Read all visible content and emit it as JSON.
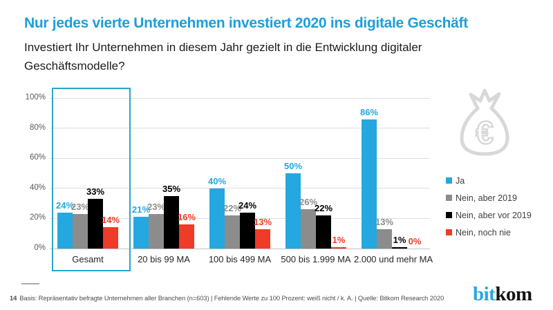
{
  "header": {
    "title": "Nur jedes vierte Unternehmen investiert 2020 ins digitale Geschäft",
    "subtitle": "Investiert Ihr Unternehmen in diesem Jahr gezielt in die Entwicklung digitaler Geschäftsmodelle?"
  },
  "chart_data": {
    "type": "bar",
    "categories": [
      "Gesamt",
      "20 bis 99 MA",
      "100 bis 499 MA",
      "500 bis 1.999 MA",
      "2.000 und mehr MA"
    ],
    "series": [
      {
        "name": "Ja",
        "color": "#25a7df",
        "values": [
          24,
          21,
          40,
          50,
          86
        ]
      },
      {
        "name": "Nein, aber 2019",
        "color": "#8c8c8c",
        "values": [
          23,
          23,
          22,
          26,
          13
        ]
      },
      {
        "name": "Nein, aber vor 2019",
        "color": "#000000",
        "values": [
          33,
          35,
          24,
          22,
          1
        ]
      },
      {
        "name": "Nein, noch nie",
        "color": "#ef3b28",
        "values": [
          14,
          16,
          13,
          1,
          0
        ]
      }
    ],
    "y_ticks": [
      "0%",
      "20%",
      "40%",
      "60%",
      "80%",
      "100%"
    ],
    "ylim": [
      0,
      100
    ],
    "grid": true,
    "legend_position": "right",
    "highlighted_category": "Gesamt",
    "value_label_suffix": "%"
  },
  "icons": {
    "money_bag": "money-bag-euro-icon",
    "euro_symbol": "€"
  },
  "footer": {
    "page_number": "14",
    "note": "Basis: Repräsentativ befragte Unternehmen aller Branchen (n=603) | Fehlende Werte zu 100 Prozent: weiß nicht / k. A. | Quelle: Bitkom Research 2020",
    "logo_part1": "bit",
    "logo_part2": "kom"
  },
  "colors": {
    "title_blue": "#1b9fdb",
    "series_blue": "#25a7df",
    "series_gray": "#8c8c8c",
    "series_black": "#000000",
    "series_red": "#ef3b28",
    "highlight_border": "#27a5c8",
    "gridline": "#dddddd",
    "icon_gray": "#d8d8d8"
  }
}
